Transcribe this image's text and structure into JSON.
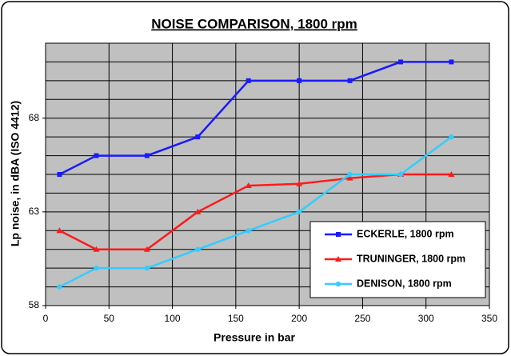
{
  "chart_data": {
    "type": "line",
    "title": "NOISE COMPARISON,  1800 rpm",
    "x_label": "Pressure in bar",
    "y_label": "Lp noise, in dBA (ISO 4412)",
    "xlim": [
      0,
      350
    ],
    "xticks": [
      0,
      50,
      100,
      150,
      200,
      250,
      300,
      350
    ],
    "ylim": [
      58,
      72
    ],
    "yticks": [
      58,
      63,
      68
    ],
    "y_grid_lines": [
      58,
      59,
      60,
      61,
      62,
      63,
      64,
      65,
      66,
      67,
      68,
      69,
      70,
      71,
      72
    ],
    "grid": true,
    "plot_background": "#c0c0c0",
    "x": [
      11,
      40,
      80,
      120,
      160,
      200,
      240,
      280,
      320
    ],
    "series": [
      {
        "name": "ECKERLE, 1800 rpm",
        "color": "#1a1aff",
        "marker": "square",
        "values": [
          65,
          66,
          66,
          67,
          70,
          70,
          70,
          71,
          71
        ]
      },
      {
        "name": "TRUNINGER, 1800 rpm",
        "color": "#ff1a1a",
        "marker": "triangle",
        "values": [
          62,
          61,
          61,
          63,
          64.4,
          64.5,
          64.8,
          65,
          65
        ]
      },
      {
        "name": "DENISON, 1800 rpm",
        "color": "#33ccff",
        "marker": "circle",
        "values": [
          59,
          60,
          60,
          61,
          62,
          63,
          65,
          65,
          67
        ]
      }
    ]
  }
}
